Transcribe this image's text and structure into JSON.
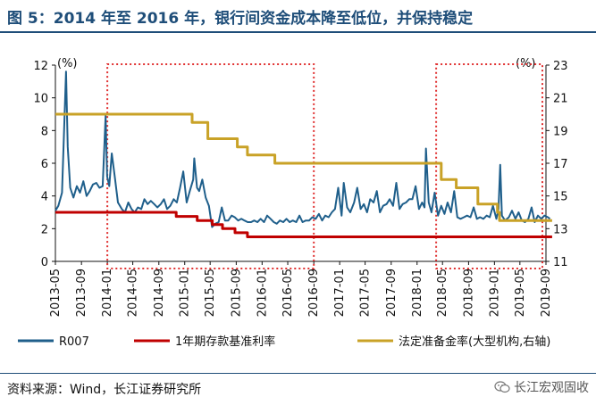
{
  "header": {
    "title": "图 5：2014 年至 2016 年，银行间资金成本降至低位，并保持稳定"
  },
  "footer": {
    "source": "资料来源：Wind，长江证券研究所",
    "brand": "长江宏观固收"
  },
  "colors": {
    "r007": "#1f5f8b",
    "deposit": "#c00000",
    "rrr": "#c9a227",
    "highlight": "#e03030",
    "title": "#1f4e79"
  },
  "chart_data": {
    "type": "line",
    "y_left": {
      "unit_label": "(%)",
      "ylim": [
        0,
        12
      ],
      "ticks": [
        0,
        2,
        4,
        6,
        8,
        10,
        12
      ]
    },
    "y_right": {
      "unit_label": "(%)",
      "ylim": [
        11,
        23
      ],
      "ticks": [
        11,
        13,
        15,
        17,
        19,
        21,
        23
      ]
    },
    "x_ticks": [
      "2013-05",
      "2013-09",
      "2014-01",
      "2014-05",
      "2014-09",
      "2015-01",
      "2015-05",
      "2015-09",
      "2016-01",
      "2016-05",
      "2016-09",
      "2017-01",
      "2017-05",
      "2017-09",
      "2018-01",
      "2018-05",
      "2018-09",
      "2019-01",
      "2019-05",
      "2019-09"
    ],
    "x_range": [
      "2013-05",
      "2019-09"
    ],
    "legend_position": "bottom",
    "highlight_boxes": [
      {
        "start": "2014-01",
        "end": "2016-09"
      },
      {
        "start": "2018-04",
        "end": "2019-09"
      }
    ],
    "series": [
      {
        "name": "R007",
        "axis": "left",
        "points": [
          [
            "2013-05-01",
            3.1
          ],
          [
            "2013-05-15",
            3.4
          ],
          [
            "2013-06-01",
            4.2
          ],
          [
            "2013-06-20",
            11.6
          ],
          [
            "2013-06-28",
            7.0
          ],
          [
            "2013-07-10",
            4.5
          ],
          [
            "2013-07-25",
            3.9
          ],
          [
            "2013-08-10",
            4.6
          ],
          [
            "2013-08-25",
            4.2
          ],
          [
            "2013-09-10",
            4.9
          ],
          [
            "2013-09-25",
            4.0
          ],
          [
            "2013-10-10",
            4.3
          ],
          [
            "2013-10-25",
            4.7
          ],
          [
            "2013-11-10",
            4.8
          ],
          [
            "2013-11-25",
            4.5
          ],
          [
            "2013-12-10",
            4.6
          ],
          [
            "2013-12-24",
            8.9
          ],
          [
            "2013-12-31",
            5.2
          ],
          [
            "2014-01-10",
            4.6
          ],
          [
            "2014-01-22",
            6.6
          ],
          [
            "2014-02-05",
            5.2
          ],
          [
            "2014-02-20",
            3.6
          ],
          [
            "2014-03-10",
            3.2
          ],
          [
            "2014-03-25",
            3.0
          ],
          [
            "2014-04-10",
            3.6
          ],
          [
            "2014-04-25",
            3.2
          ],
          [
            "2014-05-10",
            3.0
          ],
          [
            "2014-05-25",
            3.3
          ],
          [
            "2014-06-10",
            3.2
          ],
          [
            "2014-06-25",
            3.8
          ],
          [
            "2014-07-10",
            3.5
          ],
          [
            "2014-07-25",
            3.7
          ],
          [
            "2014-08-10",
            3.5
          ],
          [
            "2014-08-25",
            3.3
          ],
          [
            "2014-09-10",
            3.5
          ],
          [
            "2014-09-25",
            3.8
          ],
          [
            "2014-10-10",
            3.2
          ],
          [
            "2014-10-25",
            3.4
          ],
          [
            "2014-11-10",
            3.8
          ],
          [
            "2014-11-25",
            3.6
          ],
          [
            "2014-12-10",
            4.5
          ],
          [
            "2014-12-25",
            5.5
          ],
          [
            "2015-01-10",
            3.6
          ],
          [
            "2015-01-25",
            4.3
          ],
          [
            "2015-02-10",
            5.0
          ],
          [
            "2015-02-15",
            6.3
          ],
          [
            "2015-02-28",
            4.5
          ],
          [
            "2015-03-10",
            4.3
          ],
          [
            "2015-03-25",
            5.0
          ],
          [
            "2015-04-10",
            3.9
          ],
          [
            "2015-04-25",
            3.4
          ],
          [
            "2015-05-10",
            2.1
          ],
          [
            "2015-05-25",
            2.3
          ],
          [
            "2015-06-10",
            2.4
          ],
          [
            "2015-06-25",
            3.3
          ],
          [
            "2015-07-10",
            2.5
          ],
          [
            "2015-07-25",
            2.5
          ],
          [
            "2015-08-10",
            2.8
          ],
          [
            "2015-08-25",
            2.7
          ],
          [
            "2015-09-10",
            2.5
          ],
          [
            "2015-09-25",
            2.6
          ],
          [
            "2015-10-10",
            2.5
          ],
          [
            "2015-10-25",
            2.4
          ],
          [
            "2015-11-10",
            2.4
          ],
          [
            "2015-11-25",
            2.5
          ],
          [
            "2015-12-10",
            2.4
          ],
          [
            "2015-12-25",
            2.6
          ],
          [
            "2016-01-10",
            2.4
          ],
          [
            "2016-01-25",
            2.8
          ],
          [
            "2016-02-10",
            2.6
          ],
          [
            "2016-02-25",
            2.4
          ],
          [
            "2016-03-10",
            2.3
          ],
          [
            "2016-03-25",
            2.5
          ],
          [
            "2016-04-10",
            2.4
          ],
          [
            "2016-04-25",
            2.6
          ],
          [
            "2016-05-10",
            2.4
          ],
          [
            "2016-05-25",
            2.5
          ],
          [
            "2016-06-10",
            2.4
          ],
          [
            "2016-06-25",
            2.8
          ],
          [
            "2016-07-10",
            2.4
          ],
          [
            "2016-07-25",
            2.5
          ],
          [
            "2016-08-10",
            2.5
          ],
          [
            "2016-08-25",
            2.7
          ],
          [
            "2016-09-10",
            2.6
          ],
          [
            "2016-09-25",
            2.9
          ],
          [
            "2016-10-10",
            2.5
          ],
          [
            "2016-10-25",
            2.8
          ],
          [
            "2016-11-10",
            2.7
          ],
          [
            "2016-11-25",
            3.0
          ],
          [
            "2016-12-10",
            3.2
          ],
          [
            "2016-12-25",
            4.5
          ],
          [
            "2017-01-10",
            2.8
          ],
          [
            "2017-01-20",
            4.8
          ],
          [
            "2017-02-05",
            3.3
          ],
          [
            "2017-02-20",
            3.0
          ],
          [
            "2017-03-10",
            3.6
          ],
          [
            "2017-03-25",
            4.5
          ],
          [
            "2017-04-10",
            3.2
          ],
          [
            "2017-04-25",
            3.5
          ],
          [
            "2017-05-10",
            3.0
          ],
          [
            "2017-05-25",
            3.8
          ],
          [
            "2017-06-10",
            3.6
          ],
          [
            "2017-06-25",
            4.3
          ],
          [
            "2017-07-10",
            3.0
          ],
          [
            "2017-07-25",
            3.4
          ],
          [
            "2017-08-10",
            3.5
          ],
          [
            "2017-08-25",
            3.8
          ],
          [
            "2017-09-10",
            3.4
          ],
          [
            "2017-09-25",
            4.8
          ],
          [
            "2017-10-10",
            3.2
          ],
          [
            "2017-10-25",
            3.5
          ],
          [
            "2017-11-10",
            3.6
          ],
          [
            "2017-11-25",
            3.8
          ],
          [
            "2017-12-10",
            3.8
          ],
          [
            "2017-12-25",
            4.6
          ],
          [
            "2018-01-10",
            3.2
          ],
          [
            "2018-01-25",
            3.6
          ],
          [
            "2018-02-05",
            3.3
          ],
          [
            "2018-02-12",
            6.9
          ],
          [
            "2018-02-25",
            3.6
          ],
          [
            "2018-03-10",
            3.0
          ],
          [
            "2018-03-25",
            4.2
          ],
          [
            "2018-04-10",
            2.8
          ],
          [
            "2018-04-25",
            3.4
          ],
          [
            "2018-05-10",
            2.9
          ],
          [
            "2018-05-25",
            3.6
          ],
          [
            "2018-06-10",
            3.0
          ],
          [
            "2018-06-25",
            4.3
          ],
          [
            "2018-07-10",
            2.7
          ],
          [
            "2018-07-25",
            2.6
          ],
          [
            "2018-08-10",
            2.7
          ],
          [
            "2018-08-25",
            2.8
          ],
          [
            "2018-09-10",
            2.7
          ],
          [
            "2018-09-25",
            3.3
          ],
          [
            "2018-10-10",
            2.6
          ],
          [
            "2018-10-25",
            2.7
          ],
          [
            "2018-11-10",
            2.6
          ],
          [
            "2018-11-25",
            2.8
          ],
          [
            "2018-12-10",
            2.7
          ],
          [
            "2018-12-25",
            3.4
          ],
          [
            "2019-01-10",
            2.6
          ],
          [
            "2019-01-20",
            3.2
          ],
          [
            "2019-01-28",
            5.9
          ],
          [
            "2019-02-05",
            2.8
          ],
          [
            "2019-02-20",
            2.5
          ],
          [
            "2019-03-10",
            2.7
          ],
          [
            "2019-03-25",
            3.1
          ],
          [
            "2019-04-10",
            2.6
          ],
          [
            "2019-04-25",
            3.0
          ],
          [
            "2019-05-10",
            2.5
          ],
          [
            "2019-05-25",
            2.4
          ],
          [
            "2019-06-10",
            2.6
          ],
          [
            "2019-06-25",
            3.3
          ],
          [
            "2019-07-10",
            2.4
          ],
          [
            "2019-07-25",
            2.8
          ],
          [
            "2019-08-10",
            2.6
          ],
          [
            "2019-08-25",
            2.8
          ],
          [
            "2019-09-10",
            2.7
          ],
          [
            "2019-09-20",
            2.6
          ]
        ]
      },
      {
        "name": "1年期存款基准利率",
        "axis": "left",
        "step": true,
        "points": [
          [
            "2013-05-01",
            3.0
          ],
          [
            "2014-11-22",
            2.75
          ],
          [
            "2015-03-01",
            2.5
          ],
          [
            "2015-05-11",
            2.25
          ],
          [
            "2015-06-28",
            2.0
          ],
          [
            "2015-08-26",
            1.75
          ],
          [
            "2015-10-24",
            1.5
          ],
          [
            "2019-09-30",
            1.5
          ]
        ]
      },
      {
        "name": "法定准备金率(大型机构,右轴)",
        "axis": "right",
        "step": true,
        "points": [
          [
            "2013-05-01",
            20.0
          ],
          [
            "2015-02-05",
            19.5
          ],
          [
            "2015-04-20",
            18.5
          ],
          [
            "2015-09-06",
            18.0
          ],
          [
            "2015-10-24",
            17.5
          ],
          [
            "2016-03-01",
            17.0
          ],
          [
            "2018-04-25",
            16.0
          ],
          [
            "2018-07-05",
            15.5
          ],
          [
            "2018-10-15",
            14.5
          ],
          [
            "2019-01-15",
            14.0
          ],
          [
            "2019-01-25",
            13.5
          ],
          [
            "2019-09-30",
            13.5
          ]
        ]
      }
    ]
  }
}
